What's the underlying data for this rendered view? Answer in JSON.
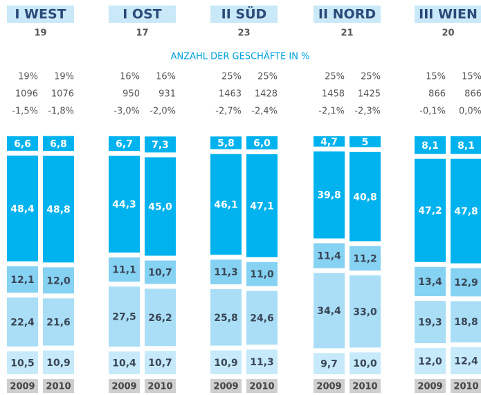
{
  "chart_data": {
    "type": "stacked_bar",
    "title": "ANZAHL DER GESCHÄFTE IN %",
    "segment_colors": [
      "#00b2ee",
      "#00b2ee",
      "#86d2f3",
      "#a9def6",
      "#c6eafa"
    ],
    "label_colors": [
      "#ffffff",
      "#ffffff",
      "#3a4656",
      "#3a4656",
      "#3a4656"
    ],
    "groups": [
      {
        "name": "I WEST",
        "number": 19,
        "columns": [
          {
            "category": "2009",
            "share": 19,
            "share_label": "19%",
            "count": 1096,
            "change": -1.5,
            "change_label": "-1,5%",
            "values": [
              6.6,
              48.4,
              12.1,
              22.4,
              10.5
            ],
            "value_labels": [
              "6,6",
              "48,4",
              "12,1",
              "22,4",
              "10,5"
            ]
          },
          {
            "category": "2010",
            "share": 19,
            "share_label": "19%",
            "count": 1076,
            "change": -1.8,
            "change_label": "-1,8%",
            "values": [
              6.8,
              48.8,
              12.0,
              21.6,
              10.9
            ],
            "value_labels": [
              "6,8",
              "48,8",
              "12,0",
              "21,6",
              "10,9"
            ]
          }
        ]
      },
      {
        "name": "I OST",
        "number": 17,
        "columns": [
          {
            "category": "2009",
            "share": 16,
            "share_label": "16%",
            "count": 950,
            "change": -3.0,
            "change_label": "-3,0%",
            "values": [
              6.7,
              44.3,
              11.1,
              27.5,
              10.4
            ],
            "value_labels": [
              "6,7",
              "44,3",
              "11,1",
              "27,5",
              "10,4"
            ]
          },
          {
            "category": "2010",
            "share": 16,
            "share_label": "16%",
            "count": 931,
            "change": -2.0,
            "change_label": "-2,0%",
            "values": [
              7.3,
              45.0,
              10.7,
              26.2,
              10.7
            ],
            "value_labels": [
              "7,3",
              "45,0",
              "10,7",
              "26,2",
              "10,7"
            ]
          }
        ]
      },
      {
        "name": "II SÜD",
        "number": 23,
        "columns": [
          {
            "category": "2009",
            "share": 25,
            "share_label": "25%",
            "count": 1463,
            "change": -2.7,
            "change_label": "-2,7%",
            "values": [
              5.8,
              46.1,
              11.3,
              25.8,
              10.9
            ],
            "value_labels": [
              "5,8",
              "46,1",
              "11,3",
              "25,8",
              "10,9"
            ]
          },
          {
            "category": "2010",
            "share": 25,
            "share_label": "25%",
            "count": 1428,
            "change": -2.4,
            "change_label": "-2,4%",
            "values": [
              6.0,
              47.1,
              11.0,
              24.6,
              11.3
            ],
            "value_labels": [
              "6,0",
              "47,1",
              "11,0",
              "24,6",
              "11,3"
            ]
          }
        ]
      },
      {
        "name": "II NORD",
        "number": 21,
        "columns": [
          {
            "category": "2009",
            "share": 25,
            "share_label": "25%",
            "count": 1458,
            "change": -2.1,
            "change_label": "-2,1%",
            "values": [
              4.7,
              39.8,
              11.4,
              34.4,
              9.7
            ],
            "value_labels": [
              "4,7",
              "39,8",
              "11,4",
              "34,4",
              "9,7"
            ]
          },
          {
            "category": "2010",
            "share": 25,
            "share_label": "25%",
            "count": 1425,
            "change": -2.3,
            "change_label": "-2,3%",
            "values": [
              5,
              40.8,
              11.2,
              33.0,
              10.0
            ],
            "value_labels": [
              "5",
              "40,8",
              "11,2",
              "33,0",
              "10,0"
            ]
          }
        ]
      },
      {
        "name": "III WIEN",
        "number": 20,
        "columns": [
          {
            "category": "2009",
            "share": 15,
            "share_label": "15%",
            "count": 866,
            "change": -0.1,
            "change_label": "-0,1%",
            "values": [
              8.1,
              47.2,
              13.4,
              19.3,
              12.0
            ],
            "value_labels": [
              "8,1",
              "47,2",
              "13,4",
              "19,3",
              "12,0"
            ]
          },
          {
            "category": "2010",
            "share": 15,
            "share_label": "15%",
            "count": 866,
            "change": 0.0,
            "change_label": "0,0%",
            "values": [
              8.1,
              47.8,
              12.9,
              18.8,
              12.4
            ],
            "value_labels": [
              "8,1",
              "47,8",
              "12,9",
              "18,8",
              "12,4"
            ]
          }
        ]
      }
    ]
  }
}
